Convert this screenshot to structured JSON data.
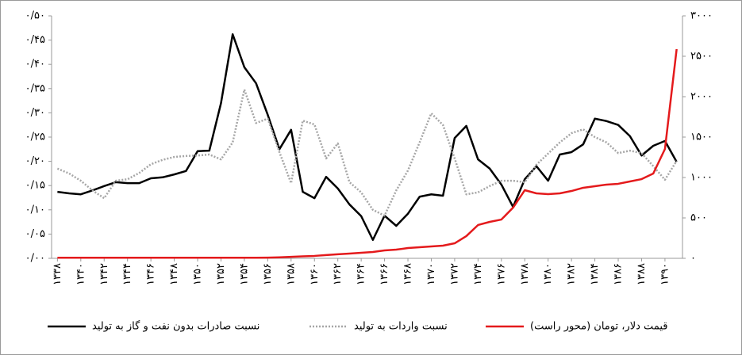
{
  "chart_data": {
    "type": "line",
    "categories": [
      "۱۳۳۸",
      null,
      "۱۳۴۰",
      null,
      "۱۳۴۲",
      null,
      "۱۳۴۴",
      null,
      "۱۳۴۶",
      null,
      "۱۳۴۸",
      null,
      "۱۳۵۰",
      null,
      "۱۳۵۲",
      null,
      "۱۳۵۴",
      null,
      "۱۳۵۶",
      null,
      "۱۳۵۸",
      null,
      "۱۳۶۰",
      null,
      "۱۳۶۲",
      null,
      "۱۳۶۴",
      null,
      "۱۳۶۶",
      null,
      "۱۳۶۸",
      null,
      "۱۳۷۰",
      null,
      "۱۳۷۲",
      null,
      "۱۳۷۴",
      null,
      "۱۳۷۶",
      null,
      "۱۳۷۸",
      null,
      "۱۳۸۰",
      null,
      "۱۳۸۲",
      null,
      "۱۳۸۴",
      null,
      "۱۳۸۶",
      null,
      "۱۳۸۸",
      null,
      "۱۳۹۰",
      null
    ],
    "series": [
      {
        "name": "نسبت صادرات بدون نفت و گاز به تولید",
        "color": "#000000",
        "dash": false,
        "values": [
          0.137,
          0.134,
          0.132,
          0.14,
          0.149,
          0.157,
          0.155,
          0.155,
          0.165,
          0.167,
          0.173,
          0.18,
          0.221,
          0.222,
          0.32,
          0.462,
          0.394,
          0.361,
          0.296,
          0.225,
          0.265,
          0.137,
          0.124,
          0.168,
          0.144,
          0.111,
          0.087,
          0.038,
          0.088,
          0.067,
          0.092,
          0.127,
          0.132,
          0.129,
          0.248,
          0.273,
          0.204,
          0.185,
          0.152,
          0.106,
          0.163,
          0.19,
          0.16,
          0.214,
          0.219,
          0.235,
          0.288,
          0.283,
          0.275,
          0.252,
          0.212,
          0.232,
          0.242,
          0.199
        ]
      },
      {
        "name": "نسبت واردات به تولید",
        "color": "#a6a6a6",
        "dash": true,
        "values": [
          0.185,
          0.175,
          0.16,
          0.14,
          0.124,
          0.16,
          0.163,
          0.176,
          0.194,
          0.203,
          0.209,
          0.211,
          0.212,
          0.214,
          0.204,
          0.239,
          0.348,
          0.279,
          0.288,
          0.219,
          0.155,
          0.284,
          0.276,
          0.206,
          0.237,
          0.157,
          0.136,
          0.1,
          0.088,
          0.14,
          0.181,
          0.239,
          0.299,
          0.275,
          0.206,
          0.132,
          0.136,
          0.149,
          0.16,
          0.16,
          0.157,
          0.193,
          0.216,
          0.239,
          0.258,
          0.266,
          0.25,
          0.239,
          0.217,
          0.222,
          0.217,
          0.19,
          0.162,
          0.201
        ]
      },
      {
        "name": "قیمت دلار، تومان (محور راست)",
        "color": "#e41a1c",
        "dash": false,
        "axis": "y2",
        "values": [
          7,
          7,
          7,
          7,
          7,
          7,
          7,
          7,
          7,
          7,
          7,
          7,
          7,
          7,
          7,
          7,
          7,
          7,
          9,
          12,
          18,
          25,
          30,
          40,
          50,
          59,
          69,
          78,
          98,
          108,
          127,
          137,
          147,
          157,
          186,
          275,
          412,
          451,
          480,
          627,
          843,
          804,
          794,
          804,
          833,
          873,
          892,
          912,
          922,
          951,
          980,
          1049,
          1353,
          2588
        ]
      }
    ],
    "ylim": [
      0,
      0.5
    ],
    "yticks": [
      {
        "value": 0,
        "label": "۰/۰۰"
      },
      {
        "value": 0.05,
        "label": "۰/۰۵"
      },
      {
        "value": 0.1,
        "label": "۰/۱۰"
      },
      {
        "value": 0.15,
        "label": "۰/۱۵"
      },
      {
        "value": 0.2,
        "label": "۰/۲۰"
      },
      {
        "value": 0.25,
        "label": "۰/۲۵"
      },
      {
        "value": 0.3,
        "label": "۰/۳۰"
      },
      {
        "value": 0.35,
        "label": "۰/۳۵"
      },
      {
        "value": 0.4,
        "label": "۰/۴۰"
      },
      {
        "value": 0.45,
        "label": "۰/۴۵"
      },
      {
        "value": 0.5,
        "label": "۰/۵۰"
      }
    ],
    "y2lim": [
      0,
      3000
    ],
    "y2ticks": [
      {
        "value": 0,
        "label": "۰"
      },
      {
        "value": 500,
        "label": "۵۰۰"
      },
      {
        "value": 1000,
        "label": "۱۰۰۰"
      },
      {
        "value": 1500,
        "label": "۱۵۰۰"
      },
      {
        "value": 2000,
        "label": "۲۰۰۰"
      },
      {
        "value": 2500,
        "label": "۲۵۰۰"
      },
      {
        "value": 3000,
        "label": "۳۰۰۰"
      }
    ],
    "grid": false,
    "legend": "bottom"
  }
}
